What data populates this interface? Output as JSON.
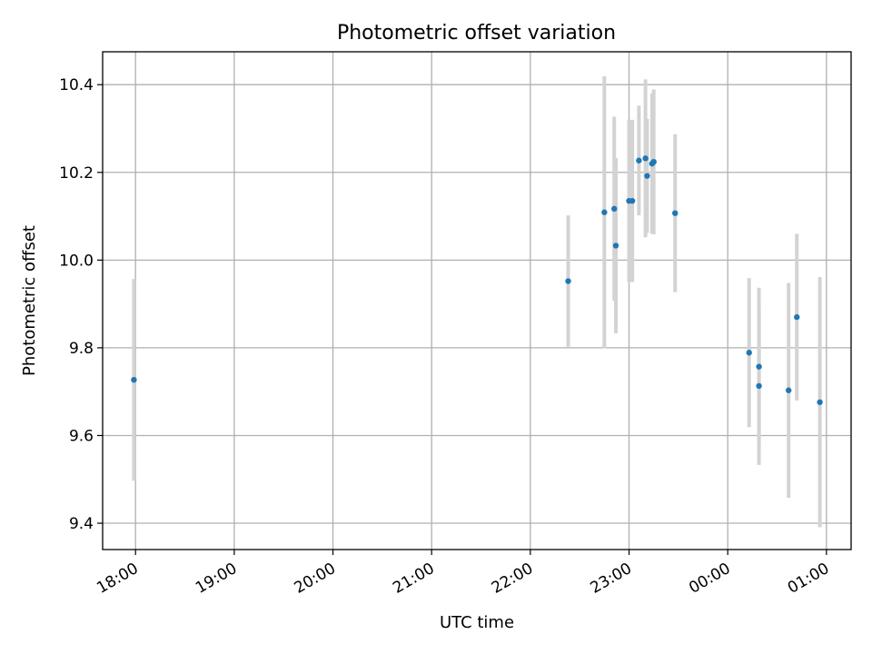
{
  "chart_data": {
    "type": "scatter",
    "title": "Photometric offset variation",
    "xlabel": "UTC time",
    "ylabel": "Photometric offset",
    "x_is_time": true,
    "xlim": [
      "17:40",
      "25:15"
    ],
    "ylim": [
      9.34,
      10.475
    ],
    "grid": true,
    "x_ticks": [
      {
        "value": "18:00",
        "label": "18:00"
      },
      {
        "value": "19:00",
        "label": "19:00"
      },
      {
        "value": "20:00",
        "label": "20:00"
      },
      {
        "value": "21:00",
        "label": "21:00"
      },
      {
        "value": "22:00",
        "label": "22:00"
      },
      {
        "value": "23:00",
        "label": "23:00"
      },
      {
        "value": "24:00",
        "label": "00:00"
      },
      {
        "value": "25:00",
        "label": "01:00"
      }
    ],
    "y_ticks": [
      9.4,
      9.6,
      9.8,
      10.0,
      10.2,
      10.4
    ],
    "y_tick_labels": [
      "9.4",
      "9.6",
      "9.8",
      "10.0",
      "10.2",
      "10.4"
    ],
    "series": [
      {
        "marker_color": "#1f77b4",
        "errorbar_color": "#d3d3d3",
        "points": [
          {
            "x": "17:59",
            "y": 9.727,
            "err": 0.23
          },
          {
            "x": "22:23",
            "y": 9.952,
            "err": 0.15
          },
          {
            "x": "22:45",
            "y": 10.109,
            "err": 0.31
          },
          {
            "x": "22:51",
            "y": 10.117,
            "err": 0.21
          },
          {
            "x": "22:52",
            "y": 10.033,
            "err": 0.2
          },
          {
            "x": "23:00",
            "y": 10.135,
            "err": 0.185
          },
          {
            "x": "23:02",
            "y": 10.135,
            "err": 0.185
          },
          {
            "x": "23:06",
            "y": 10.227,
            "err": 0.125
          },
          {
            "x": "23:10",
            "y": 10.232,
            "err": 0.18
          },
          {
            "x": "23:11",
            "y": 10.192,
            "err": 0.13
          },
          {
            "x": "23:14",
            "y": 10.22,
            "err": 0.16
          },
          {
            "x": "23:15",
            "y": 10.224,
            "err": 0.165
          },
          {
            "x": "23:28",
            "y": 10.107,
            "err": 0.18
          },
          {
            "x": "24:13",
            "y": 9.789,
            "err": 0.17
          },
          {
            "x": "24:19",
            "y": 9.713,
            "err": 0.18
          },
          {
            "x": "24:19",
            "y": 9.757,
            "err": 0.18
          },
          {
            "x": "24:37",
            "y": 9.703,
            "err": 0.245
          },
          {
            "x": "24:42",
            "y": 9.87,
            "err": 0.19
          },
          {
            "x": "24:56",
            "y": 9.676,
            "err": 0.285
          }
        ]
      }
    ]
  }
}
